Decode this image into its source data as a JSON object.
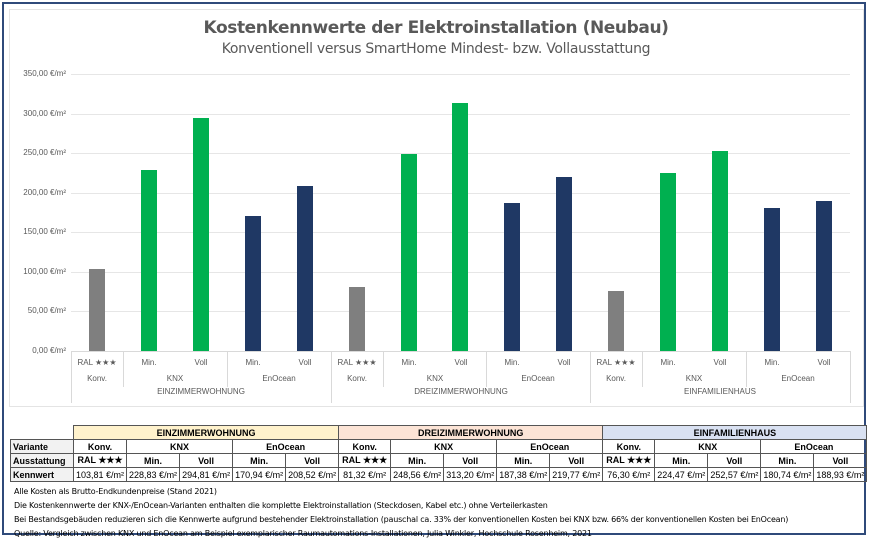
{
  "header": {
    "title": "Kostenkennwerte der Elektroinstallation (Neubau)",
    "subtitle": "Konventionell versus SmartHome Mindest- bzw. Vollausstattung"
  },
  "colors": {
    "konv": "#7f7f7f",
    "knx": "#00b050",
    "enocean": "#1f3864",
    "einzimmer_bg": "#fff2cc",
    "dreizimmer_bg": "#fce4d6",
    "einfamilien_bg": "#d9e1f2"
  },
  "y_axis": {
    "ticks": [
      "0,00 €/m²",
      "50,00 €/m²",
      "100,00 €/m²",
      "150,00 €/m²",
      "200,00 €/m²",
      "250,00 €/m²",
      "300,00 €/m²",
      "350,00 €/m²"
    ]
  },
  "chart_data": {
    "type": "bar",
    "title": "Kostenkennwerte der Elektroinstallation (Neubau)",
    "subtitle": "Konventionell versus SmartHome Mindest- bzw. Vollausstattung",
    "xlabel": "",
    "ylabel": "€/m²",
    "ylim": [
      0,
      350
    ],
    "grid": true,
    "legend": "none",
    "categories": [
      "EINZIMMERWOHNUNG / Konv. / RAL ★★★",
      "EINZIMMERWOHNUNG / KNX / Min.",
      "EINZIMMERWOHNUNG / KNX / Voll",
      "EINZIMMERWOHNUNG / EnOcean / Min.",
      "EINZIMMERWOHNUNG / EnOcean / Voll",
      "DREIZIMMERWOHNUNG / Konv. / RAL ★★★",
      "DREIZIMMERWOHNUNG / KNX / Min.",
      "DREIZIMMERWOHNUNG / KNX / Voll",
      "DREIZIMMERWOHNUNG / EnOcean / Min.",
      "DREIZIMMERWOHNUNG / EnOcean / Voll",
      "EINFAMILIENHAUS / Konv. / RAL ★★★",
      "EINFAMILIENHAUS / KNX / Min.",
      "EINFAMILIENHAUS / KNX / Voll",
      "EINFAMILIENHAUS / EnOcean / Min.",
      "EINFAMILIENHAUS / EnOcean / Voll"
    ],
    "values": [
      103.81,
      228.83,
      294.81,
      170.94,
      208.52,
      81.32,
      248.56,
      313.2,
      187.38,
      219.77,
      76.3,
      224.47,
      252.57,
      180.74,
      188.93
    ],
    "bar_colors": [
      "#7f7f7f",
      "#00b050",
      "#00b050",
      "#1f3864",
      "#1f3864",
      "#7f7f7f",
      "#00b050",
      "#00b050",
      "#1f3864",
      "#1f3864",
      "#7f7f7f",
      "#00b050",
      "#00b050",
      "#1f3864",
      "#1f3864"
    ],
    "groups": [
      {
        "name": "EINZIMMERWOHNUNG",
        "subgroups": [
          {
            "name": "Konv.",
            "items": [
              "RAL ★★★"
            ]
          },
          {
            "name": "KNX",
            "items": [
              "Min.",
              "Voll"
            ]
          },
          {
            "name": "EnOcean",
            "items": [
              "Min.",
              "Voll"
            ]
          }
        ]
      },
      {
        "name": "DREIZIMMERWOHNUNG",
        "subgroups": [
          {
            "name": "Konv.",
            "items": [
              "RAL ★★★"
            ]
          },
          {
            "name": "KNX",
            "items": [
              "Min.",
              "Voll"
            ]
          },
          {
            "name": "EnOcean",
            "items": [
              "Min.",
              "Voll"
            ]
          }
        ]
      },
      {
        "name": "EINFAMILIENHAUS",
        "subgroups": [
          {
            "name": "Konv.",
            "items": [
              "RAL ★★★"
            ]
          },
          {
            "name": "KNX",
            "items": [
              "Min.",
              "Voll"
            ]
          },
          {
            "name": "EnOcean",
            "items": [
              "Min.",
              "Voll"
            ]
          }
        ]
      }
    ]
  },
  "axis_labels": {
    "groups": [
      "EINZIMMERWOHNUNG",
      "DREIZIMMERWOHNUNG",
      "EINFAMILIENHAUS"
    ],
    "subgroups": [
      "Konv.",
      "KNX",
      "EnOcean"
    ],
    "items": [
      "RAL ★★★",
      "Min.",
      "Voll",
      "Min.",
      "Voll"
    ]
  },
  "table": {
    "row_labels": {
      "variante": "Variante",
      "ausstattung": "Ausstattung",
      "kennwert": "Kennwert"
    },
    "groups": [
      "EINZIMMERWOHNUNG",
      "DREIZIMMERWOHNUNG",
      "EINFAMILIENHAUS"
    ],
    "varianten": [
      "Konv.",
      "KNX",
      "EnOcean"
    ],
    "ausstattung": [
      "RAL ★★★",
      "Min.",
      "Voll",
      "Min.",
      "Voll"
    ],
    "kennwerte": [
      [
        "103,81 €/m²",
        "228,83 €/m²",
        "294,81 €/m²",
        "170,94 €/m²",
        "208,52 €/m²"
      ],
      [
        "81,32 €/m²",
        "248,56 €/m²",
        "313,20 €/m²",
        "187,38 €/m²",
        "219,77 €/m²"
      ],
      [
        "76,30 €/m²",
        "224,47 €/m²",
        "252,57 €/m²",
        "180,74 €/m²",
        "188,93 €/m²"
      ]
    ]
  },
  "notes": [
    "Alle Kosten als Brutto-Endkundenpreise (Stand 2021)",
    "Die Kostenkennwerte der KNX-/EnOcean-Varianten enthalten die komplette Elektroinstallation (Steckdosen, Kabel etc.) ohne Verteilerkasten",
    "Bei Bestandsgebäuden reduzieren sich die Kennwerte aufgrund bestehender Elektroinstallation (pauschal ca. 33% der konventionellen Kosten bei KNX bzw. 66% der konventionellen Kosten bei EnOcean)",
    "Quelle: Vergleich zwischen KNX und EnOcean am Beispiel exemplarischer Raumautomations-Installationen, Julia Winkler, Hochschule Rosenheim, 2021"
  ]
}
